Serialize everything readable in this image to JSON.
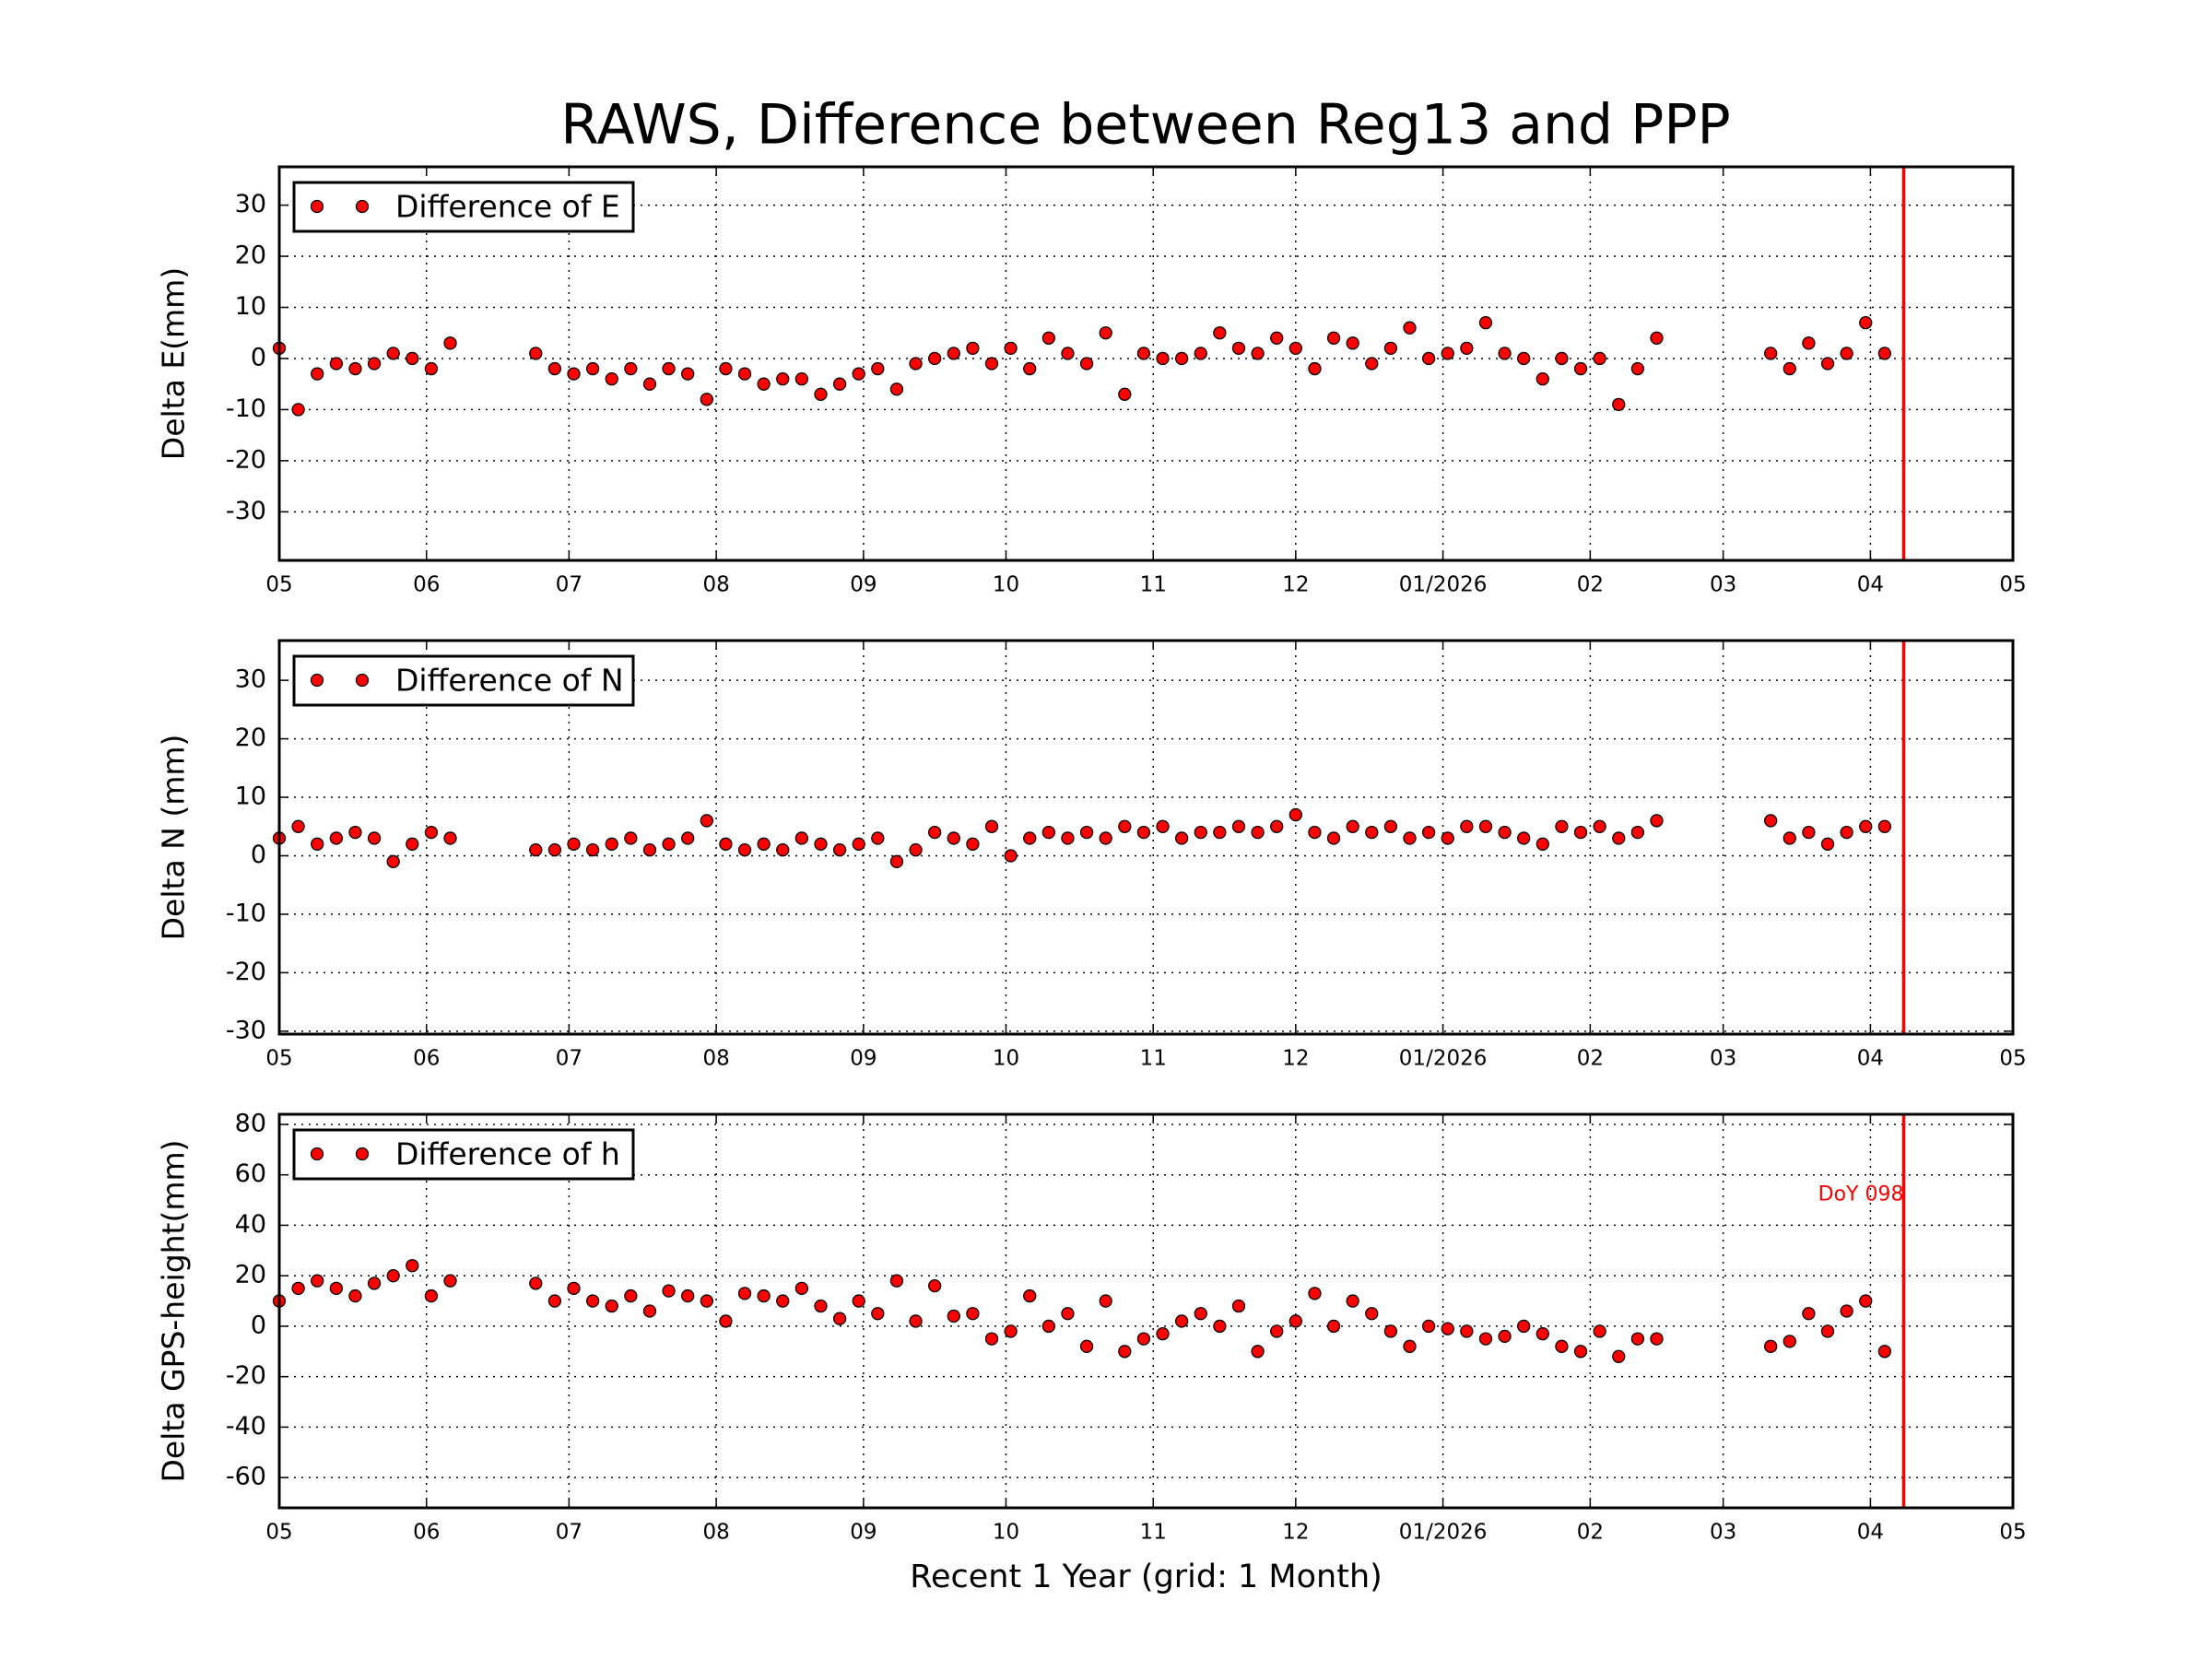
{
  "chart_data": [
    {
      "type": "scatter",
      "title": "RAWS, Difference between Reg13 and PPP",
      "ylabel": "Delta E(mm)",
      "x": [
        0,
        4,
        8,
        12,
        16,
        20,
        24,
        28,
        32,
        36,
        54,
        58,
        62,
        66,
        70,
        74,
        78,
        82,
        86,
        90,
        94,
        98,
        102,
        106,
        110,
        114,
        118,
        122,
        126,
        130,
        134,
        138,
        142,
        146,
        150,
        154,
        158,
        162,
        166,
        170,
        174,
        178,
        182,
        186,
        190,
        194,
        198,
        202,
        206,
        210,
        214,
        218,
        222,
        226,
        230,
        234,
        238,
        242,
        246,
        250,
        254,
        258,
        262,
        266,
        270,
        274,
        278,
        282,
        286,
        290,
        314,
        318,
        322,
        326,
        330,
        334,
        338
      ],
      "series": [
        {
          "name": "Difference of E",
          "color": "#ff0000",
          "values": [
            2,
            -10,
            -3,
            -1,
            -2,
            -1,
            1,
            0,
            -2,
            3,
            1,
            -2,
            -3,
            -2,
            -4,
            -2,
            -5,
            -2,
            -3,
            -8,
            -2,
            -3,
            -5,
            -4,
            -4,
            -7,
            -5,
            -3,
            -2,
            -6,
            -1,
            0,
            1,
            2,
            -1,
            2,
            -2,
            4,
            1,
            -1,
            5,
            -7,
            1,
            0,
            0,
            1,
            5,
            2,
            1,
            4,
            2,
            -2,
            4,
            3,
            -1,
            2,
            6,
            0,
            1,
            2,
            7,
            1,
            0,
            -4,
            0,
            -2,
            0,
            -9,
            -2,
            4,
            1,
            -2,
            3,
            -1,
            1,
            7,
            1
          ]
        }
      ],
      "xlim": [
        0,
        365
      ],
      "xticks": [
        {
          "value": 0,
          "label": "05"
        },
        {
          "value": 31,
          "label": "06"
        },
        {
          "value": 61,
          "label": "07"
        },
        {
          "value": 92,
          "label": "08"
        },
        {
          "value": 123,
          "label": "09"
        },
        {
          "value": 153,
          "label": "10"
        },
        {
          "value": 184,
          "label": "11"
        },
        {
          "value": 214,
          "label": "12"
        },
        {
          "value": 245,
          "label": "01/2026"
        },
        {
          "value": 276,
          "label": "02"
        },
        {
          "value": 304,
          "label": "03"
        },
        {
          "value": 335,
          "label": "04"
        },
        {
          "value": 365,
          "label": "05"
        }
      ],
      "ylim": [
        -39.5,
        37.5
      ],
      "yticks": [
        -30,
        -20,
        -10,
        0,
        10,
        20,
        30
      ],
      "grid": true,
      "legend": "upper left",
      "vline": {
        "x": 342,
        "color": "#ff0000"
      }
    },
    {
      "type": "scatter",
      "ylabel": "Delta N (mm)",
      "x": [
        0,
        4,
        8,
        12,
        16,
        20,
        24,
        28,
        32,
        36,
        54,
        58,
        62,
        66,
        70,
        74,
        78,
        82,
        86,
        90,
        94,
        98,
        102,
        106,
        110,
        114,
        118,
        122,
        126,
        130,
        134,
        138,
        142,
        146,
        150,
        154,
        158,
        162,
        166,
        170,
        174,
        178,
        182,
        186,
        190,
        194,
        198,
        202,
        206,
        210,
        214,
        218,
        222,
        226,
        230,
        234,
        238,
        242,
        246,
        250,
        254,
        258,
        262,
        266,
        270,
        274,
        278,
        282,
        286,
        290,
        314,
        318,
        322,
        326,
        330,
        334,
        338
      ],
      "series": [
        {
          "name": "Difference of N",
          "color": "#ff0000",
          "values": [
            3,
            5,
            2,
            3,
            4,
            3,
            -1,
            2,
            4,
            3,
            1,
            1,
            2,
            1,
            2,
            3,
            1,
            2,
            3,
            6,
            2,
            1,
            2,
            1,
            3,
            2,
            1,
            2,
            3,
            -1,
            1,
            4,
            3,
            2,
            5,
            0,
            3,
            4,
            3,
            4,
            3,
            5,
            4,
            5,
            3,
            4,
            4,
            5,
            4,
            5,
            7,
            4,
            3,
            5,
            4,
            5,
            3,
            4,
            3,
            5,
            5,
            4,
            3,
            2,
            5,
            4,
            5,
            3,
            4,
            6,
            6,
            3,
            4,
            2,
            4,
            5,
            5
          ]
        }
      ],
      "xlim": [
        0,
        365
      ],
      "xticks": [
        {
          "value": 0,
          "label": "05"
        },
        {
          "value": 31,
          "label": "06"
        },
        {
          "value": 61,
          "label": "07"
        },
        {
          "value": 92,
          "label": "08"
        },
        {
          "value": 123,
          "label": "09"
        },
        {
          "value": 153,
          "label": "10"
        },
        {
          "value": 184,
          "label": "11"
        },
        {
          "value": 214,
          "label": "12"
        },
        {
          "value": 245,
          "label": "01/2026"
        },
        {
          "value": 276,
          "label": "02"
        },
        {
          "value": 304,
          "label": "03"
        },
        {
          "value": 335,
          "label": "04"
        },
        {
          "value": 365,
          "label": "05"
        }
      ],
      "ylim": [
        -30.5,
        36.8
      ],
      "yticks": [
        -30,
        -20,
        -10,
        0,
        10,
        20,
        30
      ],
      "grid": true,
      "legend": "upper left",
      "vline": {
        "x": 342,
        "color": "#ff0000"
      }
    },
    {
      "type": "scatter",
      "ylabel": "Delta GPS-height(mm)",
      "xlabel": "Recent 1 Year (grid: 1 Month)",
      "x": [
        0,
        4,
        8,
        12,
        16,
        20,
        24,
        28,
        32,
        36,
        54,
        58,
        62,
        66,
        70,
        74,
        78,
        82,
        86,
        90,
        94,
        98,
        102,
        106,
        110,
        114,
        118,
        122,
        126,
        130,
        134,
        138,
        142,
        146,
        150,
        154,
        158,
        162,
        166,
        170,
        174,
        178,
        182,
        186,
        190,
        194,
        198,
        202,
        206,
        210,
        214,
        218,
        222,
        226,
        230,
        234,
        238,
        242,
        246,
        250,
        254,
        258,
        262,
        266,
        270,
        274,
        278,
        282,
        286,
        290,
        314,
        318,
        322,
        326,
        330,
        334,
        338
      ],
      "series": [
        {
          "name": "Difference of h",
          "color": "#ff0000",
          "values": [
            10,
            15,
            18,
            15,
            12,
            17,
            20,
            24,
            12,
            18,
            17,
            10,
            15,
            10,
            8,
            12,
            6,
            14,
            12,
            10,
            2,
            13,
            12,
            10,
            15,
            8,
            3,
            10,
            5,
            18,
            2,
            16,
            4,
            5,
            -5,
            -2,
            12,
            0,
            5,
            -8,
            10,
            -10,
            -5,
            -3,
            2,
            5,
            0,
            8,
            -10,
            -2,
            2,
            13,
            0,
            10,
            5,
            -2,
            -8,
            0,
            -1,
            -2,
            -5,
            -4,
            0,
            -3,
            -8,
            -10,
            -2,
            -12,
            -5,
            -5,
            -8,
            -6,
            5,
            -2,
            6,
            10,
            -10
          ]
        }
      ],
      "xlim": [
        0,
        365
      ],
      "xticks": [
        {
          "value": 0,
          "label": "05"
        },
        {
          "value": 31,
          "label": "06"
        },
        {
          "value": 61,
          "label": "07"
        },
        {
          "value": 92,
          "label": "08"
        },
        {
          "value": 123,
          "label": "09"
        },
        {
          "value": 153,
          "label": "10"
        },
        {
          "value": 184,
          "label": "11"
        },
        {
          "value": 214,
          "label": "12"
        },
        {
          "value": 245,
          "label": "01/2026"
        },
        {
          "value": 276,
          "label": "02"
        },
        {
          "value": 304,
          "label": "03"
        },
        {
          "value": 335,
          "label": "04"
        },
        {
          "value": 365,
          "label": "05"
        }
      ],
      "ylim": [
        -72,
        84
      ],
      "yticks": [
        -60,
        -40,
        -20,
        0,
        20,
        40,
        60,
        80
      ],
      "grid": true,
      "legend": "upper left",
      "vline": {
        "x": 342,
        "color": "#ff0000"
      },
      "annotation": {
        "text": "DoY 098",
        "x": 342,
        "y": 52,
        "color": "#ff0000"
      }
    }
  ]
}
